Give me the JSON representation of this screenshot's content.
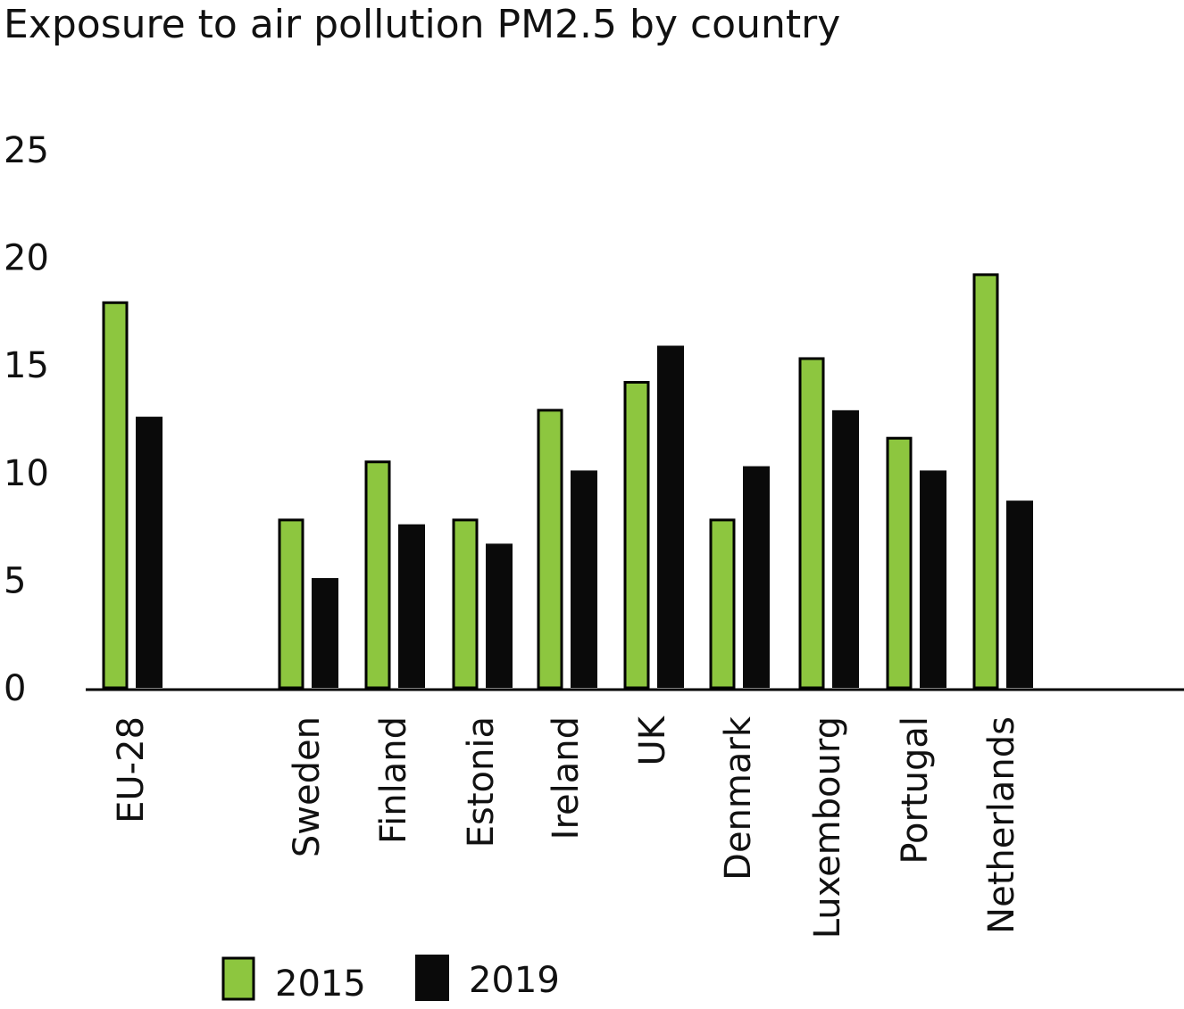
{
  "chart_data": {
    "type": "bar",
    "title": "Exposure to air pollution PM2.5 by country",
    "xlabel": "",
    "ylabel": "",
    "ylim": [
      0,
      25
    ],
    "yticks": [
      "0",
      "5",
      "10",
      "15",
      "20",
      "25"
    ],
    "categories": [
      "EU-28",
      "Sweden",
      "Finland",
      "Estonia",
      "Ireland",
      "UK",
      "Denmark",
      "Luxembourg",
      "Portugal",
      "Netherlands"
    ],
    "series": [
      {
        "name": "2015",
        "values": [
          17.9,
          7.8,
          10.5,
          7.8,
          12.9,
          14.2,
          7.8,
          15.3,
          11.6,
          19.2
        ]
      },
      {
        "name": "2019",
        "values": [
          12.6,
          5.1,
          7.6,
          6.7,
          10.1,
          15.9,
          10.3,
          12.9,
          10.1,
          8.7
        ]
      }
    ],
    "colors": {
      "2015": "#8dc63f",
      "2019": "#0a0a0a"
    },
    "grid": false,
    "legend_position": "bottom"
  }
}
